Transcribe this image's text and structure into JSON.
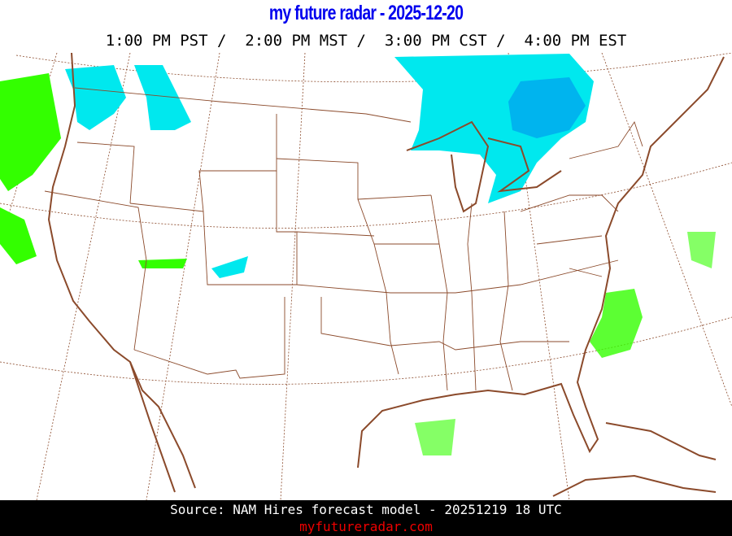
{
  "header": {
    "title": "my future radar - 2025-12-20",
    "times": "1:00 PM PST /  2:00 PM MST /  3:00 PM CST /  4:00 PM EST"
  },
  "footer": {
    "source": "Source: NAM Hires forecast model - 20251219 18 UTC",
    "site": "myfutureradar.com"
  },
  "colors": {
    "title": "#0000ee",
    "borders": "#8b4a2b",
    "snow_light": "#00e8ee",
    "snow_heavy": "#00b4ee",
    "rain_light": "#33ff00",
    "rain_heavy": "#22aa00",
    "site_link": "#ee0000"
  }
}
